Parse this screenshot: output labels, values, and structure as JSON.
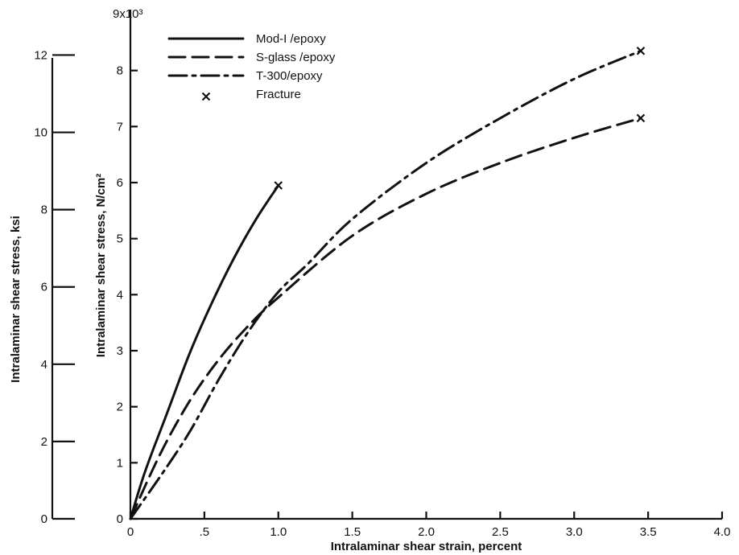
{
  "chart_data": {
    "type": "line",
    "xlabel": "Intralaminar shear strain, percent",
    "ylabel": "Intralaminar shear stress, N/cm²",
    "ylabel_secondary": "Intralaminar shear stress, ksi",
    "y_multiplier_label": "9x10³",
    "xlim": [
      0,
      4.0
    ],
    "ylim": [
      0,
      9
    ],
    "ylim_secondary": [
      0,
      13.05
    ],
    "grid": false,
    "legend_position": "top-left",
    "x_ticks": [
      "0",
      ".5",
      "1.0",
      "1.5",
      "2.0",
      "2.5",
      "3.0",
      "3.5",
      "4.0"
    ],
    "y_ticks": [
      "0",
      "1",
      "2",
      "3",
      "4",
      "5",
      "6",
      "7",
      "8"
    ],
    "y_ticks_secondary": [
      "0",
      "2",
      "4",
      "6",
      "8",
      "10",
      "12"
    ],
    "series": [
      {
        "name": "Mod-I /epoxy",
        "style": "solid",
        "x": [
          0,
          0.1,
          0.25,
          0.4,
          0.55,
          0.7,
          0.85,
          1.0
        ],
        "y": [
          0,
          0.85,
          1.9,
          2.95,
          3.85,
          4.65,
          5.35,
          5.95
        ]
      },
      {
        "name": "S-glass /epoxy",
        "style": "dashed",
        "x": [
          0,
          0.2,
          0.4,
          0.6,
          0.8,
          1.0,
          1.5,
          2.0,
          2.5,
          3.0,
          3.45
        ],
        "y": [
          0,
          1.15,
          2.1,
          2.85,
          3.45,
          3.95,
          5.05,
          5.8,
          6.35,
          6.8,
          7.15
        ]
      },
      {
        "name": "T-300/epoxy",
        "style": "dashdot",
        "x": [
          0,
          0.2,
          0.4,
          0.6,
          0.8,
          1.0,
          1.2,
          1.5,
          2.0,
          2.5,
          3.0,
          3.45
        ],
        "y": [
          0,
          0.75,
          1.55,
          2.5,
          3.35,
          4.05,
          4.55,
          5.35,
          6.35,
          7.15,
          7.85,
          8.35
        ]
      }
    ],
    "fracture_points": [
      {
        "x": 1.0,
        "y": 5.95
      },
      {
        "x": 3.45,
        "y": 7.15
      },
      {
        "x": 3.45,
        "y": 8.35
      }
    ],
    "legend": [
      {
        "label": "Mod-I /epoxy",
        "style": "solid"
      },
      {
        "label": "S-glass /epoxy",
        "style": "dashed"
      },
      {
        "label": "T-300/epoxy",
        "style": "dashdot"
      },
      {
        "label": "Fracture",
        "style": "marker-x"
      }
    ]
  }
}
